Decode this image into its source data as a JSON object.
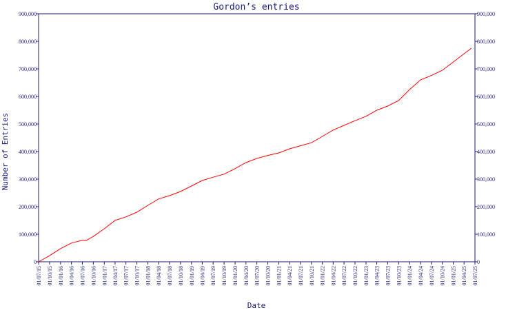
{
  "chart_data": {
    "type": "line",
    "title": "Gordon’s entries",
    "xlabel": "Date",
    "ylabel": "Number of Entries",
    "ylim": [
      0,
      900000
    ],
    "y_ticks": [
      "0",
      "100,000",
      "200,000",
      "300,000",
      "400,000",
      "500,000",
      "600,000",
      "700,000",
      "800,000",
      "900,000"
    ],
    "y_tick_values": [
      0,
      100000,
      200000,
      300000,
      400000,
      500000,
      600000,
      700000,
      800000,
      900000
    ],
    "x_ticks": [
      "01/07/15",
      "01/10/15",
      "01/01/16",
      "01/04/16",
      "01/07/16",
      "01/10/16",
      "01/01/17",
      "01/04/17",
      "01/07/17",
      "01/10/17",
      "01/01/18",
      "01/04/18",
      "01/07/18",
      "01/10/18",
      "01/01/19",
      "01/04/19",
      "01/07/19",
      "01/10/19",
      "01/01/20",
      "01/04/20",
      "01/07/20",
      "01/10/20",
      "01/01/21",
      "01/04/21",
      "01/07/21",
      "01/10/21",
      "01/01/22",
      "01/04/22",
      "01/07/22",
      "01/10/22",
      "01/01/23",
      "01/04/23",
      "01/07/23",
      "01/10/23",
      "01/01/24",
      "01/04/24",
      "01/07/24",
      "01/10/24",
      "01/01/25",
      "01/04/25",
      "01/07/25"
    ],
    "grid": false,
    "series": [
      {
        "color": "#ff0000",
        "x": [
          "01/07/15",
          "01/10/15",
          "01/01/16",
          "01/04/16",
          "01/07/16",
          "01/08/16",
          "01/10/16",
          "01/01/17",
          "01/04/17",
          "01/07/17",
          "01/10/17",
          "01/01/18",
          "01/04/18",
          "01/07/18",
          "01/10/18",
          "01/01/19",
          "01/04/19",
          "01/07/19",
          "01/10/19",
          "01/01/20",
          "01/04/20",
          "01/07/20",
          "01/10/20",
          "01/01/21",
          "01/04/21",
          "01/07/21",
          "01/10/21",
          "01/01/22",
          "01/04/22",
          "01/07/22",
          "01/10/22",
          "01/01/23",
          "01/04/23",
          "01/07/23",
          "01/10/23",
          "01/01/24",
          "01/04/24",
          "01/07/24",
          "01/10/24",
          "01/01/25",
          "01/04/25",
          "01/06/25"
        ],
        "y": [
          0,
          22000,
          48000,
          68000,
          78000,
          77000,
          92000,
          120000,
          150000,
          163000,
          180000,
          205000,
          228000,
          240000,
          255000,
          275000,
          295000,
          307000,
          318000,
          338000,
          360000,
          375000,
          386000,
          395000,
          410000,
          421000,
          432000,
          455000,
          478000,
          495000,
          512000,
          528000,
          550000,
          565000,
          585000,
          625000,
          660000,
          676000,
          695000,
          725000,
          755000,
          775000
        ]
      }
    ]
  }
}
